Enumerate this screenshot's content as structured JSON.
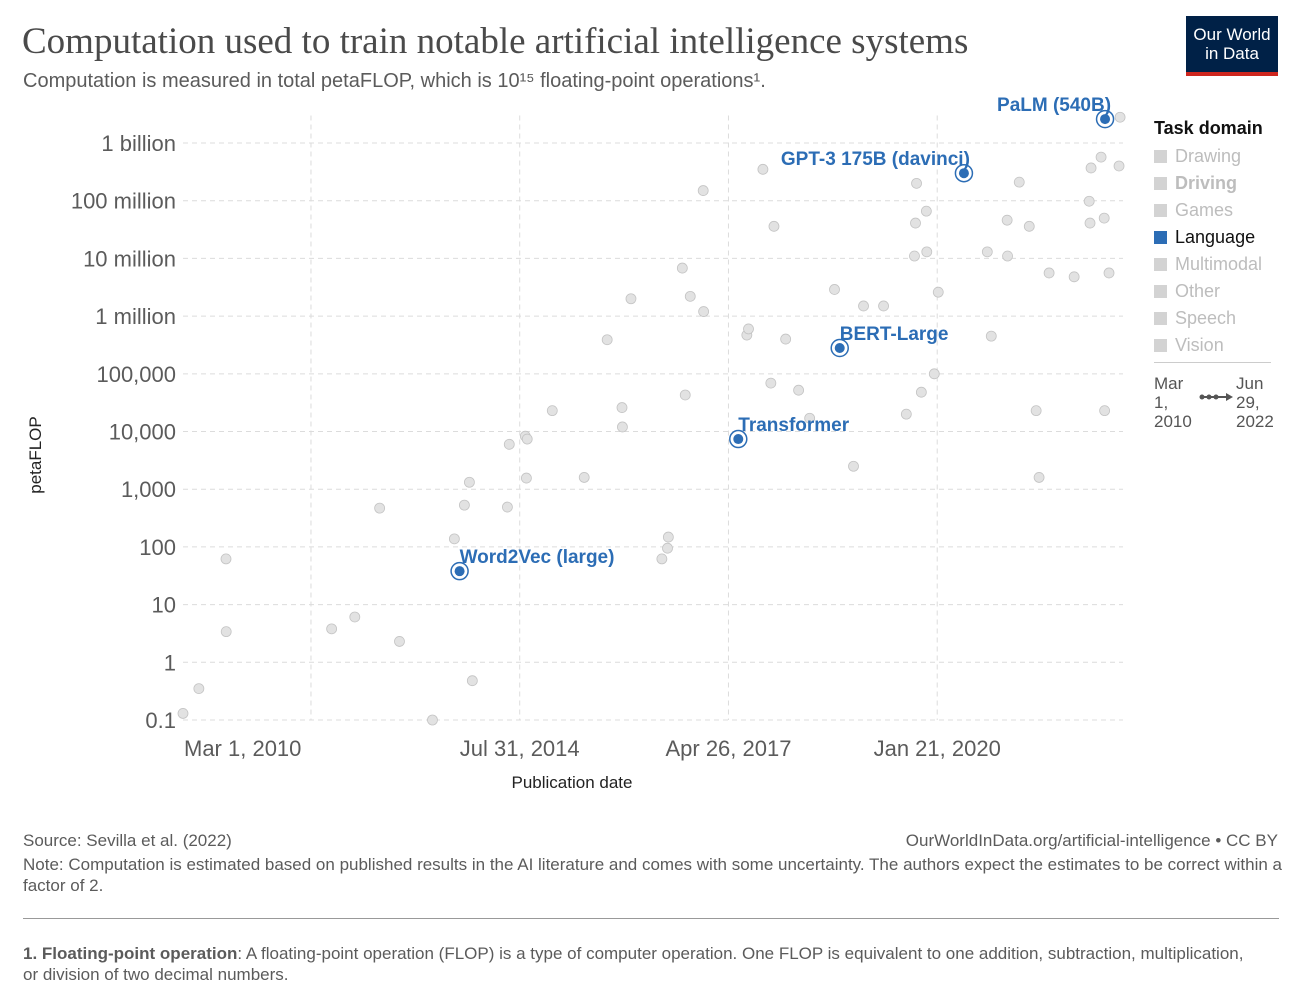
{
  "chart_data": {
    "type": "scatter",
    "title": "Computation used to train notable artificial intelligence systems",
    "subtitle": "Computation is measured in total petaFLOP, which is 10¹⁵ floating-point operations¹.",
    "logo": [
      "Our World",
      "in Data"
    ],
    "x_label": "Publication date",
    "y_label": "petaFLOP",
    "log_y": true,
    "grid": true,
    "xlim": [
      "2010-03-01",
      "2022-06-29"
    ],
    "xticks": [
      {
        "value": "2010-03-01",
        "label": "Mar 1, 2010"
      },
      {
        "value": "2011-11-04",
        "label": null
      },
      {
        "value": "2014-07-31",
        "label": "Jul 31, 2014"
      },
      {
        "value": "2017-04-26",
        "label": "Apr 26, 2017"
      },
      {
        "value": "2020-01-21",
        "label": "Jan 21, 2020"
      }
    ],
    "ylim": [
      0.1,
      3000000000
    ],
    "yticks": [
      0.1,
      1,
      10,
      100,
      {
        "value": 1000,
        "label": "1,000"
      },
      {
        "value": 10000,
        "label": "10,000"
      },
      {
        "value": 100000,
        "label": "100,000"
      },
      {
        "value": 1000000,
        "label": "1 million"
      },
      {
        "value": 10000000,
        "label": "10 million"
      },
      {
        "value": 100000000,
        "label": "100 million"
      },
      {
        "value": 1000000000,
        "label": "1 billion"
      }
    ],
    "series": [
      {
        "color": "#cfcfcf",
        "x": [
          "2010-03-01",
          "2010-05-16",
          "2010-09-23",
          "2010-09-24",
          "2012-02-11",
          "2012-06-01",
          "2012-09-28",
          "2013-01-01",
          "2013-06-08",
          "2013-09-21",
          "2013-11-08",
          "2013-12-02",
          "2013-12-16",
          "2014-06-02",
          "2014-06-11",
          "2014-08-27",
          "2014-09-05",
          "2014-09-01",
          "2015-01-03",
          "2015-06-05",
          "2015-09-23",
          "2016-01-15",
          "2015-12-03",
          "2015-12-05",
          "2016-06-11",
          "2016-07-12",
          "2016-07-08",
          "2016-09-17",
          "2016-10-01",
          "2016-10-25",
          "2016-12-26",
          "2016-12-28",
          "2017-07-23",
          "2017-07-31",
          "2017-10-08",
          "2017-11-15",
          "2017-11-30",
          "2018-01-25",
          "2018-03-28",
          "2018-05-20",
          "2018-09-16",
          "2018-12-16",
          "2019-02-02",
          "2019-05-09",
          "2019-08-26",
          "2019-10-09",
          "2019-10-14",
          "2019-10-04",
          "2019-11-06",
          "2019-11-30",
          "2019-12-02",
          "2020-01-07",
          "2020-01-26",
          "2020-09-17",
          "2020-10-06",
          "2020-12-21",
          "2020-12-23",
          "2021-02-17",
          "2021-04-06",
          "2021-05-09",
          "2021-05-23",
          "2021-07-10",
          "2021-11-07",
          "2022-01-18",
          "2022-01-27",
          "2022-01-22",
          "2022-03-16",
          "2022-03-31",
          "2022-04-02",
          "2022-04-23",
          "2022-06-10",
          "2022-06-15"
        ],
        "values": [
          0.13,
          0.35,
          62,
          3.4,
          3.8,
          6.1,
          470,
          2.3,
          0.1,
          138,
          530,
          1320,
          0.48,
          490,
          6000,
          8300,
          7400,
          1560,
          23000,
          1600,
          390000,
          2000000,
          26000,
          12000,
          62,
          148,
          95,
          6800000,
          43000,
          2200000,
          150000000,
          1200000,
          470000,
          600000,
          350000000,
          69000,
          36000000,
          400000,
          52000,
          17000,
          2900000,
          2500,
          1500000,
          1500000,
          20000,
          41000000,
          200000000,
          11000000,
          48000,
          66000000,
          13000000,
          100000,
          2600000,
          13000000,
          450000,
          46000000,
          11000000,
          210000000,
          36000000,
          23000,
          1600,
          5600000,
          4800000,
          98000000,
          370000000,
          41000000,
          570000000,
          50000000,
          23000,
          5600000,
          400000000,
          2800000000
        ]
      },
      {
        "name": "Language",
        "color": "#2c6db5",
        "x": [
          "2013-10-16",
          "2017-06-12",
          "2018-10-11",
          "2020-05-28",
          "2022-04-04"
        ],
        "values": [
          38,
          7400,
          280000,
          300000000,
          2600000000
        ],
        "point_labels": [
          "Word2Vec (large)",
          "Transformer",
          "BERT-Large",
          "GPT-3 175B (davinci)",
          "PaLM (540B)"
        ]
      }
    ],
    "legend": {
      "title": "Task domain",
      "items": [
        {
          "name": "Drawing",
          "color": "#d3d3d3"
        },
        {
          "name": "Driving",
          "color": "#d3d3d3",
          "bold": true
        },
        {
          "name": "Games",
          "color": "#d3d3d3"
        },
        {
          "name": "Language",
          "color": "#2c6db5",
          "active": true
        },
        {
          "name": "Multimodal",
          "color": "#d3d3d3"
        },
        {
          "name": "Other",
          "color": "#d3d3d3"
        },
        {
          "name": "Speech",
          "color": "#d3d3d3"
        },
        {
          "name": "Vision",
          "color": "#d3d3d3"
        }
      ]
    },
    "timeline_labels": [
      "Mar 1, 2010",
      "Jun 29, 2022"
    ],
    "source": "Source: Sevilla et al. (2022)",
    "url": "OurWorldInData.org/artificial-intelligence • CC BY",
    "note": "Note: Computation is estimated based on published results in the AI literature and comes with some uncertainty. The authors expect the estimates to be correct within a factor of 2.",
    "footnote": {
      "term": "1. Floating-point operation",
      "text": ": A floating-point operation (FLOP) is a type of computer operation. One FLOP is equivalent to one addition, subtraction, multiplication, or division of two decimal numbers."
    }
  }
}
